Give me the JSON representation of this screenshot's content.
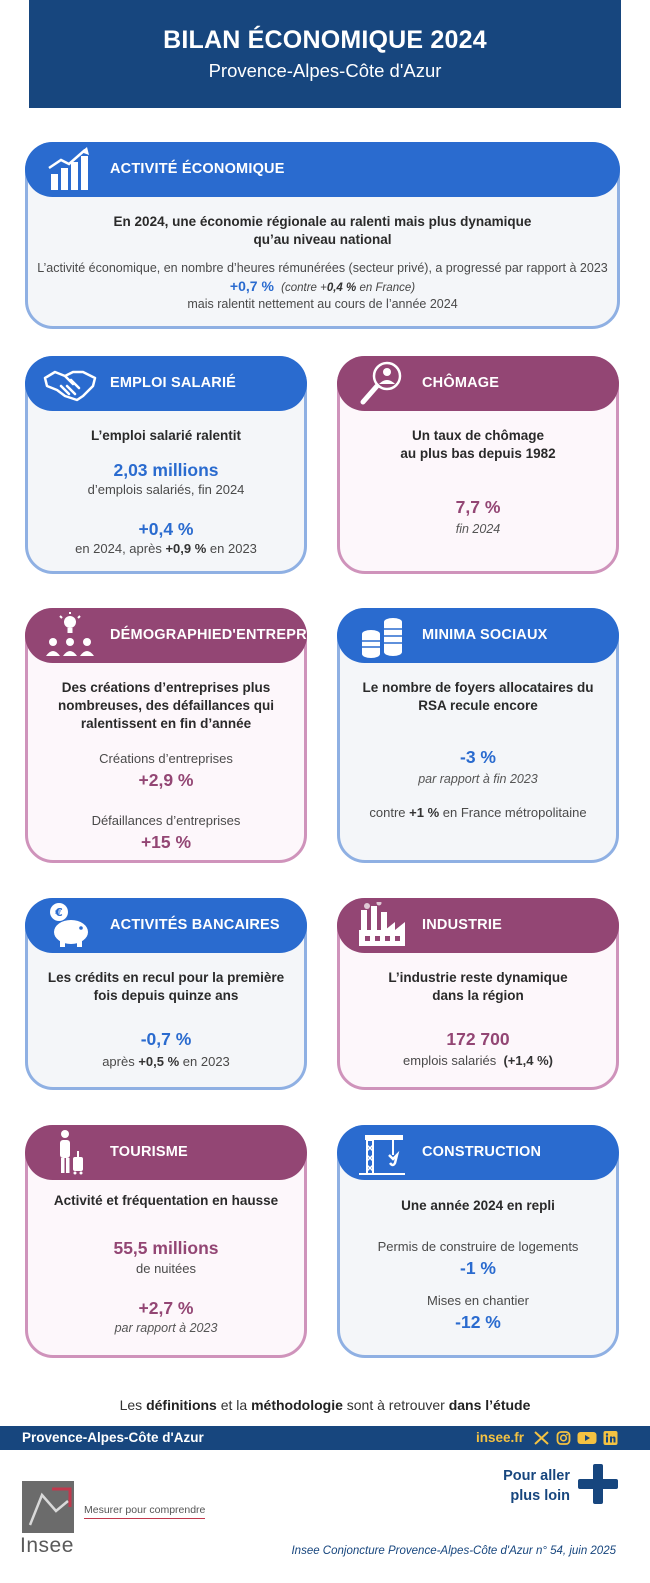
{
  "header": {
    "title": "BILAN ÉCONOMIQUE 2024",
    "subtitle": "Provence-Alpes-Côte d'Azur"
  },
  "activite": {
    "title": "ACTIVITÉ ÉCONOMIQUE",
    "lead_line1": "En 2024, une économie régionale au ralenti mais plus dynamique",
    "lead_line2": "qu’au niveau national",
    "text1": "L’activité économique, en nombre d’heures rémunérées (secteur privé), a progressé par rapport à 2023",
    "value": "+0,7 %",
    "compare_pre": "(contre +",
    "compare_val": "0,4 %",
    "compare_post": " en France)",
    "text2": "mais ralentit nettement au cours de l’année 2024"
  },
  "emploi": {
    "title": "EMPLOI SALARIÉ",
    "lead": "L’emploi salarié ralentit",
    "value1": "2,03 millions",
    "label1": "d’emplois salariés, fin 2024",
    "value2": "+0,4 %",
    "label2_pre": "en 2024, après ",
    "label2_val": "+0,9 %",
    "label2_post": " en 2023"
  },
  "chomage": {
    "title": "CHÔMAGE",
    "lead_line1": "Un taux de chômage",
    "lead_line2": "au plus bas depuis 1982",
    "value": "7,7 %",
    "label": "fin 2024"
  },
  "demographie": {
    "title_line1": "DÉMOGRAPHIE",
    "title_line2": "D'ENTREPRISES",
    "lead_line1": "Des créations d’entreprises plus",
    "lead_line2": "nombreuses, des défaillances qui",
    "lead_line3": "ralentissent en fin d’année",
    "label1": "Créations d’entreprises",
    "value1": "+2,9 %",
    "label2": "Défaillances d’entreprises",
    "value2": "+15 %"
  },
  "minima": {
    "title": "MINIMA SOCIAUX",
    "lead_line1": "Le nombre de foyers allocataires du",
    "lead_line2": "RSA recule encore",
    "value": "-3 %",
    "label": "par rapport à fin 2023",
    "compare_pre": "contre ",
    "compare_val": "+1 %",
    "compare_post": " en France métropolitaine"
  },
  "bancaires": {
    "title": "ACTIVITÉS BANCAIRES",
    "lead_line1": "Les crédits en recul pour la première",
    "lead_line2": "fois depuis quinze ans",
    "value": "-0,7 %",
    "label_pre": "après ",
    "label_val": "+0,5 %",
    "label_post": " en 2023"
  },
  "industrie": {
    "title": "INDUSTRIE",
    "lead_line1": "L’industrie reste dynamique",
    "lead_line2": "dans la région",
    "value": "172 700",
    "label": "emplois salariés ",
    "label_val": "(+1,4 %)"
  },
  "tourisme": {
    "title": "TOURISME",
    "lead": "Activité et fréquentation en hausse",
    "value1": "55,5 millions",
    "label1": "de nuitées",
    "value2": "+2,7 %",
    "label2": "par rapport à 2023"
  },
  "construction": {
    "title": "CONSTRUCTION",
    "lead": "Une année 2024 en repli",
    "label1": "Permis de construire de logements",
    "value1": "-1 %",
    "label2": "Mises en chantier",
    "value2": "-12 %"
  },
  "footer": {
    "pre": "Les ",
    "w1": "définitions",
    "mid1": " et la ",
    "w2": "méthodologie",
    "mid2": " sont à retrouver ",
    "w3": "dans l’étude",
    "region": "Provence-Alpes-Côte d'Azur",
    "site": "insee.fr",
    "logo_name": "Insee",
    "tagline": "Mesurer pour comprendre",
    "more_line1": "Pour aller",
    "more_line2": "plus loin",
    "reference": "Insee Conjoncture Provence-Alpes-Côte d'Azur n° 54, juin 2025"
  },
  "icons": {
    "social": [
      "x-icon",
      "instagram-icon",
      "youtube-icon",
      "linkedin-icon"
    ]
  },
  "colors": {
    "navy": "#17467e",
    "blue": "#2a6bcf",
    "purple": "#934674",
    "gold": "#f4c242"
  }
}
